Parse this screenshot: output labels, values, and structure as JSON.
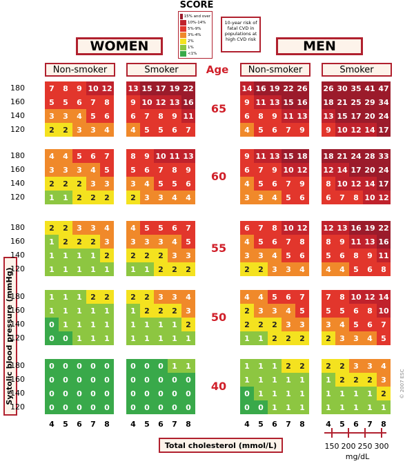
{
  "logo": "SCORE",
  "legend": {
    "items": [
      {
        "label": "15% and over",
        "color": "#9b1b2b"
      },
      {
        "label": "10%-14%",
        "color": "#c0222c"
      },
      {
        "label": "5%-9%",
        "color": "#e2362c"
      },
      {
        "label": "3%-4%",
        "color": "#f0892a"
      },
      {
        "label": "2%",
        "color": "#f4e21f"
      },
      {
        "label": "1%",
        "color": "#8dc641"
      },
      {
        "label": "<1%",
        "color": "#39a94a"
      }
    ]
  },
  "legend_note": "10-year risk of fatal CVD in populations at high CVD risk",
  "groups": [
    "WOMEN",
    "MEN"
  ],
  "column_headers": [
    "Non-smoker",
    "Smoker",
    "Non-smoker",
    "Smoker"
  ],
  "age_label": "Age",
  "ages": [
    "65",
    "60",
    "55",
    "50",
    "40"
  ],
  "sbp": [
    "180",
    "160",
    "140",
    "120"
  ],
  "cholesterol": [
    "4",
    "5",
    "6",
    "7",
    "8"
  ],
  "mgdl": [
    "150",
    "200",
    "250",
    "300"
  ],
  "mgdl_unit": "mg/dL",
  "y_label": "Systolic blood pressure (mmHg)",
  "x_label": "Total cholesterol (mmol/L)",
  "copyright": "© 2007 ESC",
  "panels": [
    [
      [
        [
          7,
          8,
          9,
          10,
          12
        ],
        [
          5,
          5,
          6,
          7,
          8
        ],
        [
          3,
          3,
          4,
          5,
          6
        ],
        [
          2,
          2,
          3,
          3,
          4
        ]
      ],
      [
        [
          13,
          15,
          17,
          19,
          22
        ],
        [
          9,
          10,
          12,
          13,
          16
        ],
        [
          6,
          7,
          8,
          9,
          11
        ],
        [
          4,
          5,
          5,
          6,
          7
        ]
      ],
      [
        [
          14,
          16,
          19,
          22,
          26
        ],
        [
          9,
          11,
          13,
          15,
          16
        ],
        [
          6,
          8,
          9,
          11,
          13
        ],
        [
          4,
          5,
          6,
          7,
          9
        ]
      ],
      [
        [
          26,
          30,
          35,
          41,
          47
        ],
        [
          18,
          21,
          25,
          29,
          34
        ],
        [
          13,
          15,
          17,
          20,
          24
        ],
        [
          9,
          10,
          12,
          14,
          17
        ]
      ]
    ],
    [
      [
        [
          4,
          4,
          5,
          6,
          7
        ],
        [
          3,
          3,
          3,
          4,
          5
        ],
        [
          2,
          2,
          2,
          3,
          3
        ],
        [
          1,
          1,
          2,
          2,
          2
        ]
      ],
      [
        [
          8,
          9,
          10,
          11,
          13
        ],
        [
          5,
          6,
          7,
          8,
          9
        ],
        [
          3,
          4,
          5,
          5,
          6
        ],
        [
          2,
          3,
          3,
          4,
          4
        ]
      ],
      [
        [
          9,
          11,
          13,
          15,
          18
        ],
        [
          6,
          7,
          9,
          10,
          12
        ],
        [
          4,
          5,
          6,
          7,
          9
        ],
        [
          3,
          3,
          4,
          5,
          6
        ]
      ],
      [
        [
          18,
          21,
          24,
          28,
          33
        ],
        [
          12,
          14,
          17,
          20,
          24
        ],
        [
          8,
          10,
          12,
          14,
          17
        ],
        [
          6,
          7,
          8,
          10,
          12
        ]
      ]
    ],
    [
      [
        [
          2,
          2,
          3,
          3,
          4
        ],
        [
          1,
          2,
          2,
          2,
          3
        ],
        [
          1,
          1,
          1,
          1,
          2
        ],
        [
          1,
          1,
          1,
          1,
          1
        ]
      ],
      [
        [
          4,
          5,
          5,
          6,
          7
        ],
        [
          3,
          3,
          3,
          4,
          5
        ],
        [
          2,
          2,
          2,
          3,
          3
        ],
        [
          1,
          1,
          2,
          2,
          2
        ]
      ],
      [
        [
          6,
          7,
          8,
          10,
          12
        ],
        [
          4,
          5,
          6,
          7,
          8
        ],
        [
          3,
          3,
          4,
          5,
          6
        ],
        [
          2,
          2,
          3,
          3,
          4
        ]
      ],
      [
        [
          12,
          13,
          16,
          19,
          22
        ],
        [
          8,
          9,
          11,
          13,
          16
        ],
        [
          5,
          6,
          8,
          9,
          11
        ],
        [
          4,
          4,
          5,
          6,
          8
        ]
      ]
    ],
    [
      [
        [
          1,
          1,
          1,
          2,
          2
        ],
        [
          1,
          1,
          1,
          1,
          1
        ],
        [
          0,
          1,
          1,
          1,
          1
        ],
        [
          0,
          0,
          1,
          1,
          1
        ]
      ],
      [
        [
          2,
          2,
          3,
          3,
          4
        ],
        [
          1,
          2,
          2,
          2,
          3
        ],
        [
          1,
          1,
          1,
          1,
          2
        ],
        [
          1,
          1,
          1,
          1,
          1
        ]
      ],
      [
        [
          4,
          4,
          5,
          6,
          7
        ],
        [
          2,
          3,
          3,
          4,
          5
        ],
        [
          2,
          2,
          2,
          3,
          3
        ],
        [
          1,
          1,
          2,
          2,
          2
        ]
      ],
      [
        [
          7,
          8,
          10,
          12,
          14
        ],
        [
          5,
          5,
          6,
          8,
          10
        ],
        [
          3,
          4,
          5,
          6,
          7
        ],
        [
          2,
          3,
          3,
          4,
          5
        ]
      ]
    ],
    [
      [
        [
          0,
          0,
          0,
          0,
          0
        ],
        [
          0,
          0,
          0,
          0,
          0
        ],
        [
          0,
          0,
          0,
          0,
          0
        ],
        [
          0,
          0,
          0,
          0,
          0
        ]
      ],
      [
        [
          0,
          0,
          0,
          1,
          1
        ],
        [
          0,
          0,
          0,
          0,
          0
        ],
        [
          0,
          0,
          0,
          0,
          0
        ],
        [
          0,
          0,
          0,
          0,
          0
        ]
      ],
      [
        [
          1,
          1,
          1,
          2,
          2
        ],
        [
          1,
          1,
          1,
          1,
          1
        ],
        [
          0,
          1,
          1,
          1,
          1
        ],
        [
          0,
          0,
          1,
          1,
          1
        ]
      ],
      [
        [
          2,
          2,
          3,
          3,
          4
        ],
        [
          1,
          2,
          2,
          2,
          3
        ],
        [
          1,
          1,
          1,
          1,
          2
        ],
        [
          1,
          1,
          1,
          1,
          1
        ]
      ]
    ]
  ]
}
